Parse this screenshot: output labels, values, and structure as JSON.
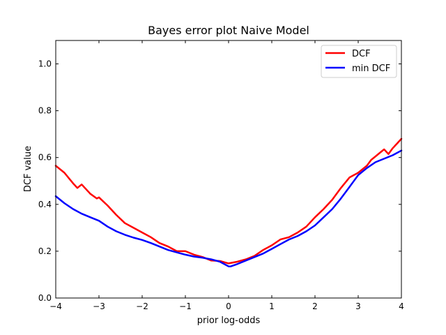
{
  "chart_data": {
    "type": "line",
    "title": "Bayes error plot Naive Model",
    "xlabel": "prior log-odds",
    "ylabel": "DCF value",
    "xlim": [
      -4,
      4
    ],
    "ylim": [
      0,
      1.1
    ],
    "xticks": [
      -4,
      -3,
      -2,
      -1,
      0,
      1,
      2,
      3,
      4
    ],
    "xtick_labels": [
      "−4",
      "−3",
      "−2",
      "−1",
      "0",
      "1",
      "2",
      "3",
      "4"
    ],
    "yticks": [
      0.0,
      0.2,
      0.4,
      0.6,
      0.8,
      1.0
    ],
    "ytick_labels": [
      "0.0",
      "0.2",
      "0.4",
      "0.6",
      "0.8",
      "1.0"
    ],
    "grid": false,
    "legend_position": "top-right",
    "series": [
      {
        "name": "DCF",
        "color": "#ff0000",
        "x": [
          -4.0,
          -3.8,
          -3.6,
          -3.5,
          -3.4,
          -3.2,
          -3.05,
          -3.0,
          -2.8,
          -2.6,
          -2.4,
          -2.2,
          -2.0,
          -1.8,
          -1.6,
          -1.4,
          -1.2,
          -1.0,
          -0.8,
          -0.6,
          -0.4,
          -0.2,
          0.0,
          0.2,
          0.4,
          0.6,
          0.8,
          1.0,
          1.2,
          1.4,
          1.6,
          1.8,
          2.0,
          2.2,
          2.4,
          2.6,
          2.8,
          3.0,
          3.2,
          3.3,
          3.4,
          3.5,
          3.6,
          3.7,
          3.8,
          3.9,
          4.0
        ],
        "y": [
          0.565,
          0.535,
          0.49,
          0.47,
          0.485,
          0.445,
          0.425,
          0.43,
          0.395,
          0.355,
          0.32,
          0.3,
          0.28,
          0.26,
          0.235,
          0.22,
          0.2,
          0.2,
          0.185,
          0.175,
          0.16,
          0.158,
          0.148,
          0.155,
          0.165,
          0.18,
          0.205,
          0.225,
          0.25,
          0.26,
          0.28,
          0.305,
          0.345,
          0.38,
          0.42,
          0.47,
          0.515,
          0.535,
          0.565,
          0.59,
          0.605,
          0.62,
          0.635,
          0.615,
          0.64,
          0.66,
          0.68
        ]
      },
      {
        "name": "min DCF",
        "color": "#0000ff",
        "x": [
          -4.0,
          -3.8,
          -3.6,
          -3.4,
          -3.2,
          -3.0,
          -2.8,
          -2.6,
          -2.4,
          -2.2,
          -2.0,
          -1.8,
          -1.6,
          -1.4,
          -1.2,
          -1.0,
          -0.8,
          -0.6,
          -0.4,
          -0.2,
          -0.05,
          0.0,
          0.05,
          0.2,
          0.4,
          0.6,
          0.8,
          1.0,
          1.2,
          1.4,
          1.6,
          1.8,
          2.0,
          2.2,
          2.4,
          2.6,
          2.8,
          3.0,
          3.2,
          3.4,
          3.6,
          3.8,
          4.0
        ],
        "y": [
          0.435,
          0.405,
          0.38,
          0.36,
          0.345,
          0.33,
          0.305,
          0.285,
          0.27,
          0.258,
          0.248,
          0.235,
          0.22,
          0.205,
          0.195,
          0.185,
          0.177,
          0.172,
          0.165,
          0.155,
          0.14,
          0.135,
          0.135,
          0.145,
          0.16,
          0.175,
          0.19,
          0.21,
          0.23,
          0.25,
          0.265,
          0.285,
          0.31,
          0.345,
          0.38,
          0.425,
          0.475,
          0.525,
          0.555,
          0.58,
          0.595,
          0.61,
          0.63
        ]
      }
    ]
  }
}
